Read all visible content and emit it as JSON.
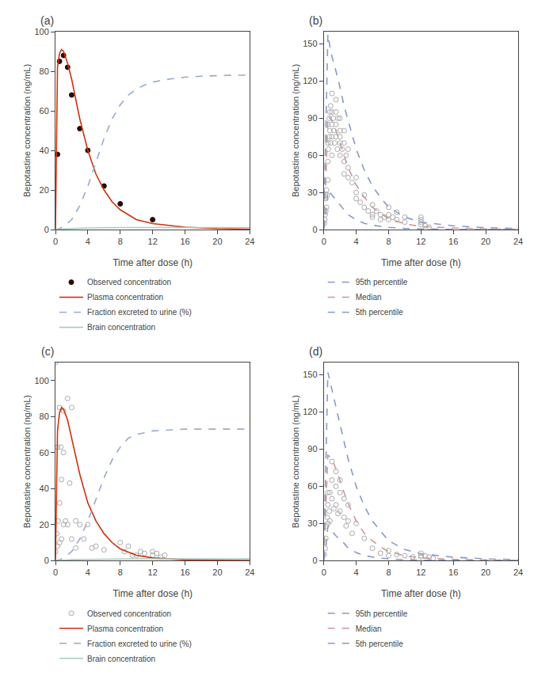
{
  "chart_data": [
    {
      "type": "line",
      "title": "(a)",
      "x_label": "Time after dose (h)",
      "y_label": "Bepotastine concentration (ng/mL)",
      "xlim": [
        0,
        24
      ],
      "xticks": [
        0,
        4,
        8,
        12,
        16,
        20,
        24
      ],
      "ylim": [
        0,
        100
      ],
      "yticks": [
        0,
        20,
        40,
        60,
        80,
        100
      ],
      "grid": false,
      "series": [
        {
          "name": "Observed concentration",
          "type": "scatter",
          "marker": "circle",
          "color": "#2a0a00",
          "x": [
            0.25,
            0.5,
            1.0,
            1.5,
            2.0,
            3.0,
            4.0,
            6.0,
            8.0,
            12.0
          ],
          "values": [
            38,
            85,
            88,
            82,
            68,
            51,
            40,
            22,
            13,
            5
          ]
        },
        {
          "name": "Plasma concentration",
          "type": "line",
          "line_style": "solid",
          "color": "#cc3311",
          "x": [
            0,
            0.1,
            0.25,
            0.5,
            0.75,
            1.0,
            1.5,
            2.0,
            2.5,
            3.0,
            4.0,
            5.0,
            6.0,
            7.0,
            8.0,
            10.0,
            12.0,
            16.0,
            20.0,
            24.0
          ],
          "values": [
            0,
            45,
            82,
            89,
            91,
            90,
            84,
            76,
            66,
            56,
            40,
            28,
            20,
            14,
            10,
            5,
            3,
            1.2,
            0.5,
            0.2
          ]
        },
        {
          "name": "Fraction excreted to urine (%)",
          "type": "line",
          "line_style": "dashed",
          "color": "#99aacc",
          "x": [
            0,
            0.5,
            1.0,
            2.0,
            3.0,
            4.0,
            5.0,
            6.0,
            7.0,
            8.0,
            9.0,
            10.0,
            11.0,
            12.0,
            14.0,
            16.0,
            18.0,
            20.0,
            22.0,
            24.0
          ],
          "values": [
            0,
            0.5,
            1.5,
            5,
            12,
            22,
            34,
            46,
            56,
            63,
            68,
            71,
            73,
            74.5,
            76,
            77,
            77.5,
            77.8,
            78,
            78
          ]
        },
        {
          "name": "Brain concentration",
          "type": "line",
          "line_style": "solid",
          "color": "#aaccbb",
          "x": [
            0,
            1,
            2,
            4,
            6,
            8,
            10,
            12,
            16,
            20,
            24
          ],
          "values": [
            0,
            0.3,
            0.5,
            0.8,
            1.0,
            1.0,
            1.0,
            1.0,
            1.0,
            1.0,
            1.0
          ]
        }
      ]
    },
    {
      "type": "line",
      "title": "(b)",
      "x_label": "Time after dose (h)",
      "y_label": "Bepotastine concentration (ng/mL)",
      "xlim": [
        0,
        24
      ],
      "xticks": [
        0,
        4,
        8,
        12,
        16,
        20,
        24
      ],
      "ylim": [
        0,
        160
      ],
      "yticks": [
        0,
        30,
        60,
        90,
        120,
        150
      ],
      "grid": false,
      "series": [
        {
          "name": "95th percentile",
          "type": "line",
          "line_style": "dashed",
          "color": "#8899cc",
          "x": [
            0,
            0.25,
            0.5,
            0.75,
            1.0,
            1.5,
            2.0,
            2.5,
            3.0,
            4.0,
            5.0,
            6.0,
            7.0,
            8.0,
            10.0,
            12.0,
            16.0,
            20.0,
            24.0
          ],
          "values": [
            2,
            80,
            158,
            148,
            140,
            128,
            115,
            100,
            88,
            65,
            48,
            35,
            26,
            18,
            10,
            6,
            3,
            1.5,
            0.8
          ]
        },
        {
          "name": "Median",
          "type": "line",
          "line_style": "dashed",
          "color": "#cc9999",
          "x": [
            0,
            0.25,
            0.5,
            0.75,
            1.0,
            1.5,
            2.0,
            2.5,
            3.0,
            4.0,
            5.0,
            6.0,
            7.0,
            8.0,
            10.0,
            12.0,
            16.0,
            20.0,
            24.0
          ],
          "values": [
            1,
            40,
            92,
            90,
            88,
            80,
            70,
            60,
            50,
            36,
            26,
            18,
            13,
            9,
            4.5,
            2.5,
            1.2,
            0.5,
            0.2
          ]
        },
        {
          "name": "5th percentile",
          "type": "line",
          "line_style": "dashed",
          "color": "#8899cc",
          "x": [
            0,
            0.25,
            0.5,
            0.75,
            1.0,
            1.5,
            2.0,
            2.5,
            3.0,
            4.0,
            5.0,
            6.0,
            7.0,
            8.0,
            10.0,
            12.0,
            16.0,
            20.0,
            24.0
          ],
          "values": [
            0.5,
            12,
            32,
            30,
            28,
            24,
            20,
            16,
            12,
            8,
            5,
            3.5,
            2.5,
            1.8,
            0.9,
            0.5,
            0.2,
            0.1,
            0.05
          ]
        },
        {
          "type": "scatter",
          "marker": "circle-open",
          "color": "#aaaaaa",
          "x": [
            0.08,
            0.12,
            0.17,
            0.25,
            0.25,
            0.33,
            0.33,
            0.42,
            0.5,
            0.5,
            0.5,
            0.5,
            0.58,
            0.67,
            0.67,
            0.75,
            0.75,
            0.83,
            0.83,
            1.0,
            1.0,
            1.0,
            1.0,
            1.0,
            1.17,
            1.25,
            1.33,
            1.5,
            1.5,
            1.5,
            1.5,
            1.67,
            1.75,
            2.0,
            2.0,
            2.0,
            2.0,
            2.0,
            2.25,
            2.5,
            2.5,
            2.5,
            2.5,
            2.75,
            3.0,
            3.0,
            3.0,
            3.5,
            4.0,
            4.0,
            4.0,
            4.5,
            5.0,
            5.0,
            5.5,
            6.0,
            6.0,
            6.0,
            6.5,
            7.0,
            7.0,
            7.5,
            8.0,
            8.0,
            8.0,
            8.5,
            9.0,
            9.0,
            10.0,
            10.0,
            12.0,
            12.0,
            12.0,
            12.0,
            12.5,
            13.0
          ],
          "values": [
            5,
            8,
            12,
            15,
            25,
            18,
            32,
            28,
            40,
            55,
            70,
            85,
            65,
            75,
            90,
            80,
            95,
            70,
            100,
            85,
            95,
            110,
            75,
            60,
            90,
            80,
            70,
            95,
            85,
            105,
            75,
            65,
            90,
            80,
            70,
            90,
            60,
            75,
            65,
            55,
            70,
            80,
            45,
            60,
            50,
            65,
            42,
            38,
            30,
            42,
            25,
            22,
            18,
            28,
            15,
            12,
            20,
            10,
            15,
            8,
            12,
            10,
            12,
            8,
            18,
            10,
            8,
            14,
            6,
            10,
            6,
            8,
            4,
            10,
            3,
            2
          ]
        }
      ]
    },
    {
      "type": "line",
      "title": "(c)",
      "x_label": "Time after dose (h)",
      "y_label": "Bepotastine concentration (ng/mL)",
      "xlim": [
        0,
        24
      ],
      "xticks": [
        0,
        4,
        8,
        12,
        16,
        20,
        24
      ],
      "ylim": [
        0,
        110
      ],
      "yticks": [
        0,
        20,
        40,
        60,
        80,
        100
      ],
      "grid": false,
      "series": [
        {
          "name": "Observed concentration",
          "type": "scatter",
          "marker": "circle-open",
          "color": "#aaaaaa",
          "x": [
            0.0,
            0.0,
            0.17,
            0.25,
            0.25,
            0.33,
            0.5,
            0.5,
            0.5,
            0.67,
            0.75,
            0.75,
            1.0,
            1.0,
            1.0,
            1.25,
            1.5,
            1.5,
            1.75,
            2.0,
            2.0,
            2.5,
            2.5,
            3.0,
            3.5,
            4.0,
            4.5,
            5.0,
            6.0,
            8.0,
            8.5,
            9.0,
            9.5,
            10.0,
            10.5,
            11.0,
            12.0,
            12.0,
            12.5,
            13.0,
            13.5
          ],
          "values": [
            110,
            5,
            15,
            63,
            8,
            22,
            85,
            10,
            32,
            63,
            12,
            45,
            83,
            20,
            60,
            22,
            90,
            20,
            43,
            85,
            12,
            22,
            7,
            20,
            12,
            20,
            7,
            8,
            6,
            10,
            5,
            8,
            3,
            3,
            5,
            4,
            3,
            5,
            4,
            2,
            3
          ]
        },
        {
          "name": "Plasma concentration",
          "type": "line",
          "line_style": "solid",
          "color": "#cc3311",
          "x": [
            0,
            0.1,
            0.25,
            0.5,
            0.75,
            1.0,
            1.5,
            2.0,
            2.5,
            3.0,
            4.0,
            5.0,
            6.0,
            7.0,
            8.0,
            10.0,
            12.0,
            16.0,
            20.0,
            24.0
          ],
          "values": [
            0,
            35,
            72,
            82,
            85,
            84,
            78,
            68,
            58,
            48,
            32,
            22,
            15,
            10,
            6.5,
            3,
            1.5,
            0.5,
            0.2,
            0.08
          ]
        },
        {
          "name": "Fraction excreted to urine (%)",
          "type": "line",
          "line_style": "dashed",
          "color": "#99aacc",
          "x": [
            0,
            0.5,
            1.0,
            2.0,
            3.0,
            4.0,
            5.0,
            6.0,
            7.0,
            8.0,
            9.0,
            10.0,
            11.0,
            12.0,
            14.0,
            16.0,
            18.0,
            20.0,
            22.0,
            24.0
          ],
          "values": [
            0,
            0.5,
            1.5,
            5,
            12,
            22,
            34,
            46,
            56,
            63,
            68,
            70,
            71,
            72,
            72.5,
            73,
            73,
            73,
            73,
            73
          ]
        },
        {
          "name": "Brain concentration",
          "type": "line",
          "line_style": "solid",
          "color": "#aaccbb",
          "x": [
            0,
            1,
            2,
            4,
            6,
            8,
            10,
            12,
            16,
            20,
            24
          ],
          "values": [
            0,
            0.3,
            0.5,
            0.7,
            0.9,
            1.0,
            1.0,
            1.0,
            1.0,
            1.0,
            1.0
          ]
        }
      ]
    },
    {
      "type": "line",
      "title": "(d)",
      "x_label": "Time after dose (h)",
      "y_label": "Bepotastine concentration (ng/mL)",
      "xlim": [
        0,
        24
      ],
      "xticks": [
        0,
        4,
        8,
        12,
        16,
        20,
        24
      ],
      "ylim": [
        0,
        160
      ],
      "yticks": [
        0,
        30,
        60,
        90,
        120,
        150
      ],
      "grid": false,
      "series": [
        {
          "name": "95th percentile",
          "type": "line",
          "line_style": "dashed",
          "color": "#8899cc",
          "x": [
            0,
            0.25,
            0.5,
            0.75,
            1.0,
            1.5,
            2.0,
            2.5,
            3.0,
            4.0,
            5.0,
            6.0,
            7.0,
            8.0,
            10.0,
            12.0,
            16.0,
            20.0,
            24.0
          ],
          "values": [
            2,
            75,
            152,
            145,
            138,
            125,
            110,
            95,
            82,
            60,
            44,
            32,
            24,
            16,
            9,
            5.5,
            2.8,
            1.4,
            0.7
          ]
        },
        {
          "name": "Median",
          "type": "line",
          "line_style": "dashed",
          "color": "#cc9999",
          "x": [
            0,
            0.25,
            0.5,
            0.75,
            1.0,
            1.5,
            2.0,
            2.5,
            3.0,
            4.0,
            5.0,
            6.0,
            7.0,
            8.0,
            10.0,
            12.0,
            16.0,
            20.0,
            24.0
          ],
          "values": [
            1,
            38,
            85,
            84,
            82,
            74,
            64,
            55,
            46,
            32,
            22,
            16,
            11,
            7.5,
            3.8,
            2.2,
            1.0,
            0.4,
            0.2
          ]
        },
        {
          "name": "5th percentile",
          "type": "line",
          "line_style": "dashed",
          "color": "#8899cc",
          "x": [
            0,
            0.25,
            0.5,
            0.75,
            1.0,
            1.5,
            2.0,
            2.5,
            3.0,
            4.0,
            5.0,
            6.0,
            7.0,
            8.0,
            10.0,
            12.0,
            16.0,
            20.0,
            24.0
          ],
          "values": [
            0.5,
            10,
            28,
            26,
            24,
            20,
            17,
            14,
            10,
            6.5,
            4,
            3,
            2,
            1.5,
            0.7,
            0.4,
            0.15,
            0.08,
            0.04
          ]
        },
        {
          "type": "scatter",
          "marker": "circle-open",
          "color": "#aaaaaa",
          "x": [
            0.08,
            0.17,
            0.25,
            0.33,
            0.42,
            0.5,
            0.5,
            0.5,
            0.67,
            0.75,
            0.75,
            1.0,
            1.0,
            1.0,
            1.25,
            1.5,
            1.5,
            1.5,
            1.75,
            2.0,
            2.0,
            2.0,
            2.5,
            2.5,
            2.75,
            3.0,
            3.0,
            3.5,
            4.0,
            5.0,
            6.0,
            7.0,
            8.0,
            8.0,
            9.0,
            10.0,
            11.0,
            12.0,
            12.0,
            12.0,
            12.5,
            13.0,
            13.5
          ],
          "values": [
            5,
            10,
            18,
            28,
            35,
            45,
            30,
            55,
            40,
            55,
            32,
            65,
            80,
            50,
            42,
            60,
            72,
            45,
            38,
            55,
            40,
            65,
            35,
            50,
            28,
            32,
            45,
            22,
            30,
            18,
            10,
            6,
            8,
            4,
            5,
            4,
            3,
            4,
            6,
            3,
            4,
            3,
            2
          ]
        }
      ]
    }
  ]
}
